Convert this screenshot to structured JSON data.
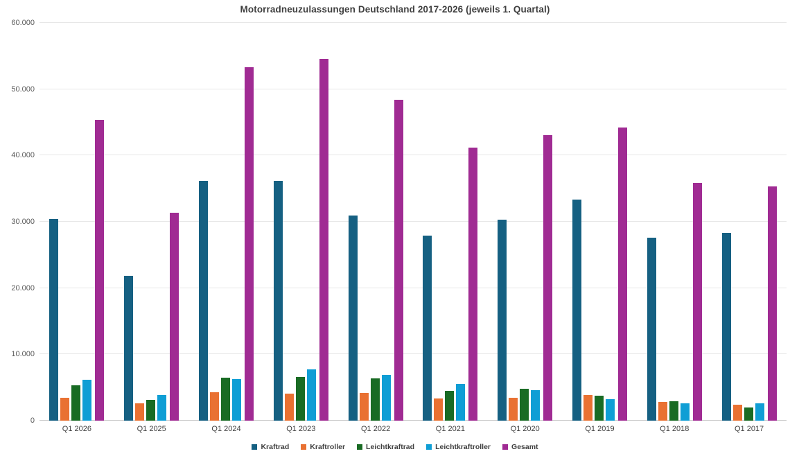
{
  "chart_data": {
    "type": "bar",
    "title": "Motorradneuzulassungen Deutschland 2017-2026 (jeweils 1. Quartal)",
    "categories": [
      "Q1 2026",
      "Q1 2025",
      "Q1 2024",
      "Q1 2023",
      "Q1 2022",
      "Q1 2021",
      "Q1 2020",
      "Q1 2019",
      "Q1 2018",
      "Q1 2017"
    ],
    "series": [
      {
        "name": "Kraftrad",
        "color": "#156082",
        "values": [
          30400,
          21800,
          36200,
          36200,
          30900,
          27900,
          30300,
          33300,
          27600,
          28300
        ]
      },
      {
        "name": "Kraftroller",
        "color": "#E97132",
        "values": [
          3500,
          2600,
          4300,
          4100,
          4200,
          3300,
          3400,
          3900,
          2800,
          2400
        ]
      },
      {
        "name": "Leichtkraftrad",
        "color": "#196B24",
        "values": [
          5300,
          3100,
          6500,
          6600,
          6400,
          4500,
          4800,
          3800,
          2900,
          2000
        ]
      },
      {
        "name": "Leichtkraftroller",
        "color": "#0F9ED5",
        "values": [
          6200,
          3900,
          6300,
          7700,
          6900,
          5500,
          4600,
          3200,
          2600,
          2600
        ]
      },
      {
        "name": "Gesamt",
        "color": "#A02B93",
        "values": [
          45400,
          31400,
          53300,
          54600,
          48400,
          41200,
          43100,
          44200,
          35900,
          35300
        ]
      }
    ],
    "xlabel": "",
    "ylabel": "",
    "ylim": [
      0,
      60000
    ],
    "ytick_step": 10000,
    "ytick_labels": [
      "0",
      "10.000",
      "20.000",
      "30.000",
      "40.000",
      "50.000",
      "60.000"
    ],
    "grid": true,
    "legend_position": "bottom"
  }
}
